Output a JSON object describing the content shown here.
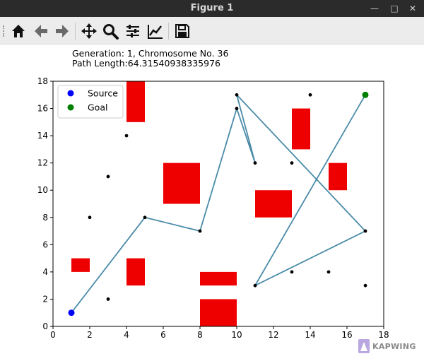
{
  "window": {
    "title": "Figure 1",
    "controls": [
      "minimize-icon",
      "maximize-icon",
      "close-icon"
    ]
  },
  "toolbar": {
    "buttons": [
      {
        "name": "home-icon",
        "label": "Home"
      },
      {
        "name": "back-icon",
        "label": "Back"
      },
      {
        "name": "forward-icon",
        "label": "Forward"
      },
      {
        "name": "pan-icon",
        "label": "Pan"
      },
      {
        "name": "zoom-icon",
        "label": "Zoom"
      },
      {
        "name": "subplots-icon",
        "label": "Subplots"
      },
      {
        "name": "customize-icon",
        "label": "Customize"
      },
      {
        "name": "save-icon",
        "label": "Save"
      }
    ]
  },
  "chart_data": {
    "type": "scatter",
    "title": "Generation: 1, Chromosome No. 36\nPath Length:64.31540938335976",
    "xlim": [
      0,
      18
    ],
    "ylim": [
      0,
      18
    ],
    "xticks": [
      0,
      2,
      4,
      6,
      8,
      10,
      12,
      14,
      16,
      18
    ],
    "yticks": [
      0,
      2,
      4,
      6,
      8,
      10,
      12,
      14,
      16,
      18
    ],
    "grid": false,
    "legend_position": "top-left",
    "legend": [
      {
        "label": "Source",
        "color": "#0000ff"
      },
      {
        "label": "Goal",
        "color": "#008000"
      }
    ],
    "source": {
      "x": 1,
      "y": 1
    },
    "goal": {
      "x": 17,
      "y": 17
    },
    "nodes": [
      [
        2,
        8
      ],
      [
        3,
        11
      ],
      [
        3,
        2
      ],
      [
        4,
        14
      ],
      [
        5,
        8
      ],
      [
        8,
        7
      ],
      [
        10,
        17
      ],
      [
        10,
        16
      ],
      [
        11,
        12
      ],
      [
        11,
        3
      ],
      [
        13,
        12
      ],
      [
        13,
        4
      ],
      [
        14,
        17
      ],
      [
        15,
        4
      ],
      [
        17,
        7
      ],
      [
        17,
        3
      ]
    ],
    "path": [
      [
        1,
        1
      ],
      [
        5,
        8
      ],
      [
        8,
        7
      ],
      [
        10,
        16
      ],
      [
        11,
        12
      ],
      [
        10,
        17
      ],
      [
        17,
        7
      ],
      [
        11,
        3
      ],
      [
        17,
        17
      ]
    ],
    "obstacles": [
      {
        "x0": 4,
        "x1": 5,
        "y0": 15,
        "y1": 18
      },
      {
        "x0": 13,
        "x1": 14,
        "y0": 13,
        "y1": 16
      },
      {
        "x0": 6,
        "x1": 8,
        "y0": 9,
        "y1": 12
      },
      {
        "x0": 15,
        "x1": 16,
        "y0": 10,
        "y1": 12
      },
      {
        "x0": 11,
        "x1": 13,
        "y0": 8,
        "y1": 10
      },
      {
        "x0": 1,
        "x1": 2,
        "y0": 4,
        "y1": 5
      },
      {
        "x0": 4,
        "x1": 5,
        "y0": 3,
        "y1": 5
      },
      {
        "x0": 8,
        "x1": 10,
        "y0": 3,
        "y1": 4
      },
      {
        "x0": 8,
        "x1": 10,
        "y0": 0,
        "y1": 2
      }
    ],
    "colors": {
      "obstacle": "#ee0000",
      "path": "#4a8ba8",
      "node": "#000000",
      "source": "#0000ff",
      "goal": "#008000"
    }
  },
  "watermark": {
    "text": "KAPWING"
  }
}
